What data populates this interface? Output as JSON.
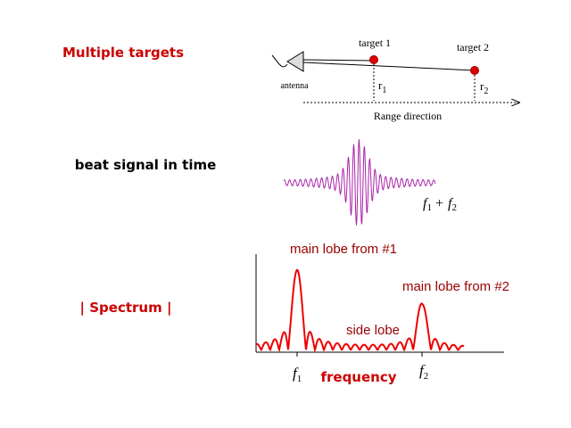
{
  "title": "Multiple targets",
  "radar": {
    "target_1": "target 1",
    "target_2": "target 2",
    "antenna": "antenna",
    "r1": {
      "base": "r",
      "sub": "1"
    },
    "r2": {
      "base": "r",
      "sub": "2"
    },
    "axis": "Range direction"
  },
  "beat": {
    "label": "beat signal in time",
    "sum": {
      "f1": "f",
      "s1": "1",
      "plus": "+",
      "f2": "f",
      "s2": "2"
    }
  },
  "spectrum": {
    "label": "| Spectrum |",
    "lobe_1": "main lobe from #1",
    "lobe_2": "main lobe from #2",
    "side": "side lobe",
    "f1": {
      "base": "f",
      "sub": "1"
    },
    "f2": {
      "base": "f",
      "sub": "2"
    },
    "axis": "frequency"
  }
}
